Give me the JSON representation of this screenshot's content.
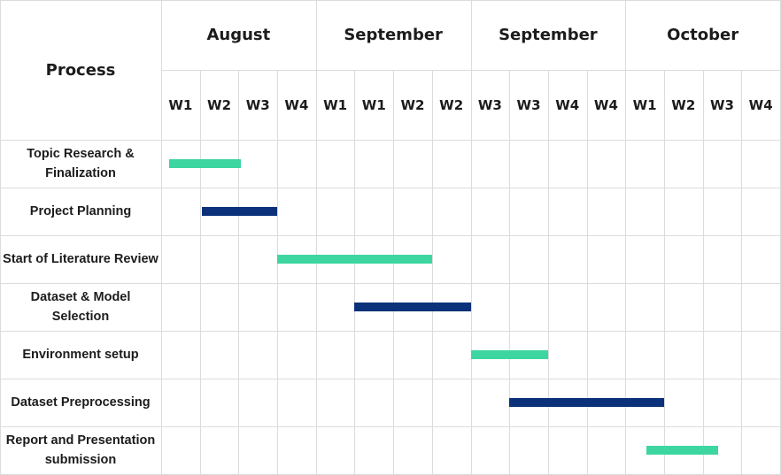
{
  "header": {
    "process_label": "Process",
    "months": [
      "August",
      "September",
      "September",
      "October"
    ],
    "weeks": [
      "W1",
      "W2",
      "W3",
      "W4",
      "W1",
      "W1",
      "W2",
      "W2",
      "W3",
      "W3",
      "W4",
      "W4",
      "W1",
      "W2",
      "W3",
      "W4"
    ]
  },
  "colors": {
    "teal": "#3dd6a0",
    "navy": "#0a3179",
    "grid": "#dcdcdc",
    "text": "#1c1c1c"
  },
  "tasks": [
    {
      "label": "Topic Research & Finalization",
      "start": 0.2,
      "end": 2.05,
      "color": "teal"
    },
    {
      "label": "Project Planning",
      "start": 1.05,
      "end": 3.0,
      "color": "navy"
    },
    {
      "label": "Start of Literature Review",
      "start": 3.0,
      "end": 7.0,
      "color": "teal"
    },
    {
      "label": "Dataset & Model Selection",
      "start": 5.0,
      "end": 8.0,
      "color": "navy"
    },
    {
      "label": "Environment setup",
      "start": 8.0,
      "end": 10.0,
      "color": "teal"
    },
    {
      "label": "Dataset Preprocessing",
      "start": 9.0,
      "end": 13.0,
      "color": "navy"
    },
    {
      "label": "Report and Presentation submission",
      "start": 12.55,
      "end": 14.4,
      "color": "teal"
    }
  ]
}
